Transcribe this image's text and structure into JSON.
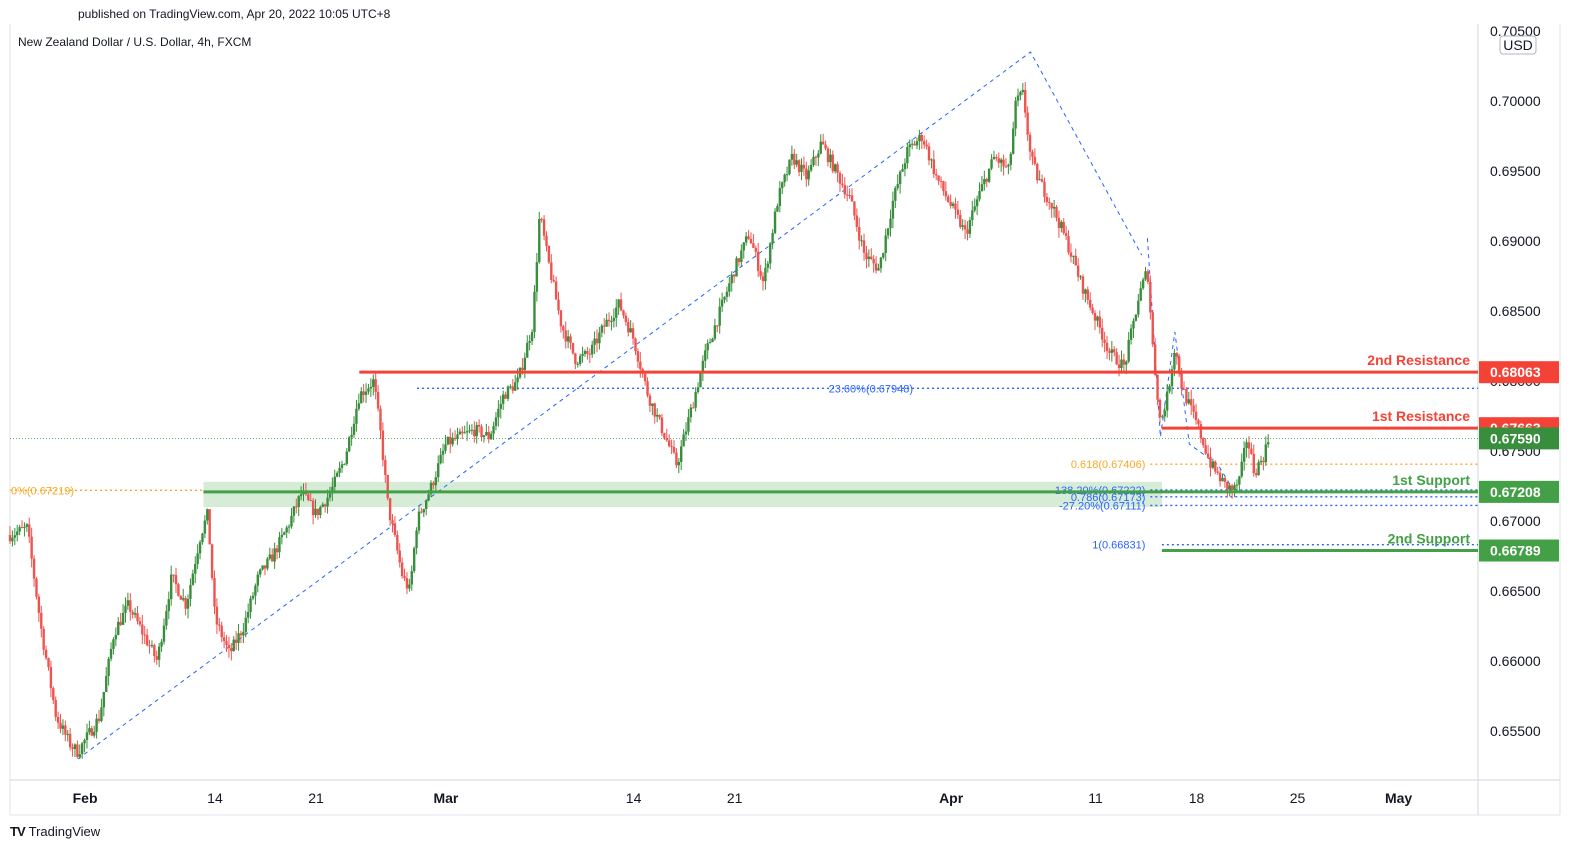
{
  "header": {
    "published": "published on TradingView.com, Apr 20, 2022 10:05 UTC+8",
    "symbol": "New Zealand Dollar / U.S. Dollar, 4h, FXCM"
  },
  "footer": {
    "brand": "TradingView",
    "logo": "TV"
  },
  "colors": {
    "up": "#26a69a",
    "up_candle": "#388e3c",
    "down": "#ef5350",
    "resistance": "#f44336",
    "support": "#43a047",
    "fib_blue": "#2962ff",
    "fib_orange": "#f9a825"
  },
  "chart_data": {
    "type": "candlestick",
    "currency": "USD",
    "y_axis": {
      "labels": [
        "0.70500",
        "0.70000",
        "0.69500",
        "0.69000",
        "0.68500",
        "0.68000",
        "0.67500",
        "0.67000",
        "0.66500",
        "0.66000",
        "0.65500"
      ],
      "ylim": [
        0.6515,
        0.7055
      ]
    },
    "x_axis": {
      "labels": [
        {
          "t": 3,
          "label": "Feb",
          "bold": true
        },
        {
          "t": 12,
          "label": "14",
          "bold": false
        },
        {
          "t": 19,
          "label": "21",
          "bold": false
        },
        {
          "t": 28,
          "label": "Mar",
          "bold": true
        },
        {
          "t": 41,
          "label": "14",
          "bold": false
        },
        {
          "t": 48,
          "label": "21",
          "bold": false
        },
        {
          "t": 63,
          "label": "Apr",
          "bold": true
        },
        {
          "t": 73,
          "label": "11",
          "bold": false
        },
        {
          "t": 80,
          "label": "18",
          "bold": false
        },
        {
          "t": 87,
          "label": "25",
          "bold": false
        },
        {
          "t": 94,
          "label": "May",
          "bold": true
        }
      ],
      "xlim": [
        -2.2,
        99.5
      ]
    },
    "price_path": [
      [
        -2.2,
        0.669
      ],
      [
        -1,
        0.6695
      ],
      [
        0,
        0.662
      ],
      [
        1,
        0.656
      ],
      [
        2,
        0.654
      ],
      [
        2.5,
        0.6535
      ],
      [
        4,
        0.656
      ],
      [
        5,
        0.662
      ],
      [
        6,
        0.664
      ],
      [
        8,
        0.66
      ],
      [
        9,
        0.666
      ],
      [
        10,
        0.664
      ],
      [
        11,
        0.669
      ],
      [
        11.5,
        0.6705
      ],
      [
        12,
        0.663
      ],
      [
        13,
        0.6605
      ],
      [
        14,
        0.6625
      ],
      [
        15,
        0.666
      ],
      [
        16,
        0.6675
      ],
      [
        17,
        0.6695
      ],
      [
        18,
        0.672
      ],
      [
        19,
        0.6705
      ],
      [
        20,
        0.672
      ],
      [
        21,
        0.6745
      ],
      [
        22,
        0.679
      ],
      [
        23,
        0.68
      ],
      [
        23.5,
        0.676
      ],
      [
        24,
        0.671
      ],
      [
        25,
        0.666
      ],
      [
        25.5,
        0.665
      ],
      [
        26,
        0.67
      ],
      [
        27,
        0.6725
      ],
      [
        28,
        0.6755
      ],
      [
        30,
        0.6765
      ],
      [
        31,
        0.676
      ],
      [
        32,
        0.679
      ],
      [
        33,
        0.68
      ],
      [
        34,
        0.684
      ],
      [
        34.5,
        0.692
      ],
      [
        35,
        0.689
      ],
      [
        36,
        0.684
      ],
      [
        37,
        0.6815
      ],
      [
        38,
        0.682
      ],
      [
        39,
        0.684
      ],
      [
        40,
        0.6855
      ],
      [
        41,
        0.683
      ],
      [
        42,
        0.679
      ],
      [
        43,
        0.6765
      ],
      [
        44,
        0.674
      ],
      [
        45,
        0.678
      ],
      [
        46,
        0.682
      ],
      [
        47,
        0.685
      ],
      [
        48,
        0.688
      ],
      [
        49,
        0.6905
      ],
      [
        50,
        0.687
      ],
      [
        51,
        0.693
      ],
      [
        52,
        0.696
      ],
      [
        53,
        0.6945
      ],
      [
        54,
        0.697
      ],
      [
        55,
        0.695
      ],
      [
        56,
        0.693
      ],
      [
        57,
        0.689
      ],
      [
        58,
        0.688
      ],
      [
        59,
        0.693
      ],
      [
        60,
        0.6965
      ],
      [
        61,
        0.6975
      ],
      [
        62,
        0.6945
      ],
      [
        63,
        0.6925
      ],
      [
        64,
        0.6905
      ],
      [
        65,
        0.6935
      ],
      [
        66,
        0.696
      ],
      [
        67,
        0.695
      ],
      [
        67.5,
        0.7
      ],
      [
        68,
        0.7005
      ],
      [
        68.5,
        0.696
      ],
      [
        69,
        0.6945
      ],
      [
        70,
        0.6925
      ],
      [
        71,
        0.69
      ],
      [
        72,
        0.687
      ],
      [
        73,
        0.6845
      ],
      [
        74,
        0.682
      ],
      [
        75,
        0.681
      ],
      [
        76,
        0.686
      ],
      [
        76.6,
        0.688
      ],
      [
        77,
        0.682
      ],
      [
        77.5,
        0.677
      ],
      [
        78,
        0.679
      ],
      [
        78.5,
        0.6825
      ],
      [
        79,
        0.6795
      ],
      [
        80,
        0.677
      ],
      [
        81,
        0.674
      ],
      [
        82,
        0.6725
      ],
      [
        82.6,
        0.6722
      ],
      [
        83,
        0.673
      ],
      [
        83.5,
        0.676
      ],
      [
        84,
        0.6735
      ],
      [
        84.6,
        0.6745
      ],
      [
        85,
        0.6759
      ]
    ],
    "fib_trendlines": [
      [
        [
          2.5,
          0.653
        ],
        [
          68.5,
          0.7035
        ],
        [
          76.2,
          0.689
        ]
      ],
      [
        [
          76.6,
          0.6902
        ],
        [
          77.5,
          0.676
        ],
        [
          78.5,
          0.6835
        ],
        [
          79.5,
          0.6755
        ],
        [
          81.5,
          0.674
        ],
        [
          82.5,
          0.6723
        ]
      ]
    ],
    "levels": [
      {
        "name": "2nd Resistance",
        "price": 0.68063,
        "label": "0.68063",
        "t_start": 22,
        "kind": "resistance"
      },
      {
        "name": "1st Resistance",
        "price": 0.67663,
        "label": "0.67663",
        "t_start": 77.6,
        "kind": "resistance"
      },
      {
        "name": "1st Support",
        "price": 0.67208,
        "label": "0.67208",
        "t_start": 11.2,
        "kind": "support"
      },
      {
        "name": "2nd Support",
        "price": 0.66789,
        "label": "0.66789",
        "t_start": 77.6,
        "kind": "support"
      }
    ],
    "current_price": {
      "price": 0.6759,
      "label": "0.67590"
    },
    "support_zone": [
      0.671,
      0.6728
    ],
    "fib_levels": [
      {
        "label": "23.60%(0.67948)",
        "price": 0.67948,
        "color": "blue"
      },
      {
        "label": "0.618(0.67406)",
        "price": 0.67406,
        "color": "orange"
      },
      {
        "label": "0%(0.67219)",
        "price": 0.67219,
        "color": "orange"
      },
      {
        "label": "138.20%(0.67222)",
        "price": 0.67222,
        "color": "blue"
      },
      {
        "label": "0.786(0.67173)",
        "price": 0.67173,
        "color": "blue"
      },
      {
        "label": "-27.20%(0.67111)",
        "price": 0.67111,
        "color": "blue"
      },
      {
        "label": "1(0.66831)",
        "price": 0.66831,
        "color": "blue"
      }
    ]
  }
}
